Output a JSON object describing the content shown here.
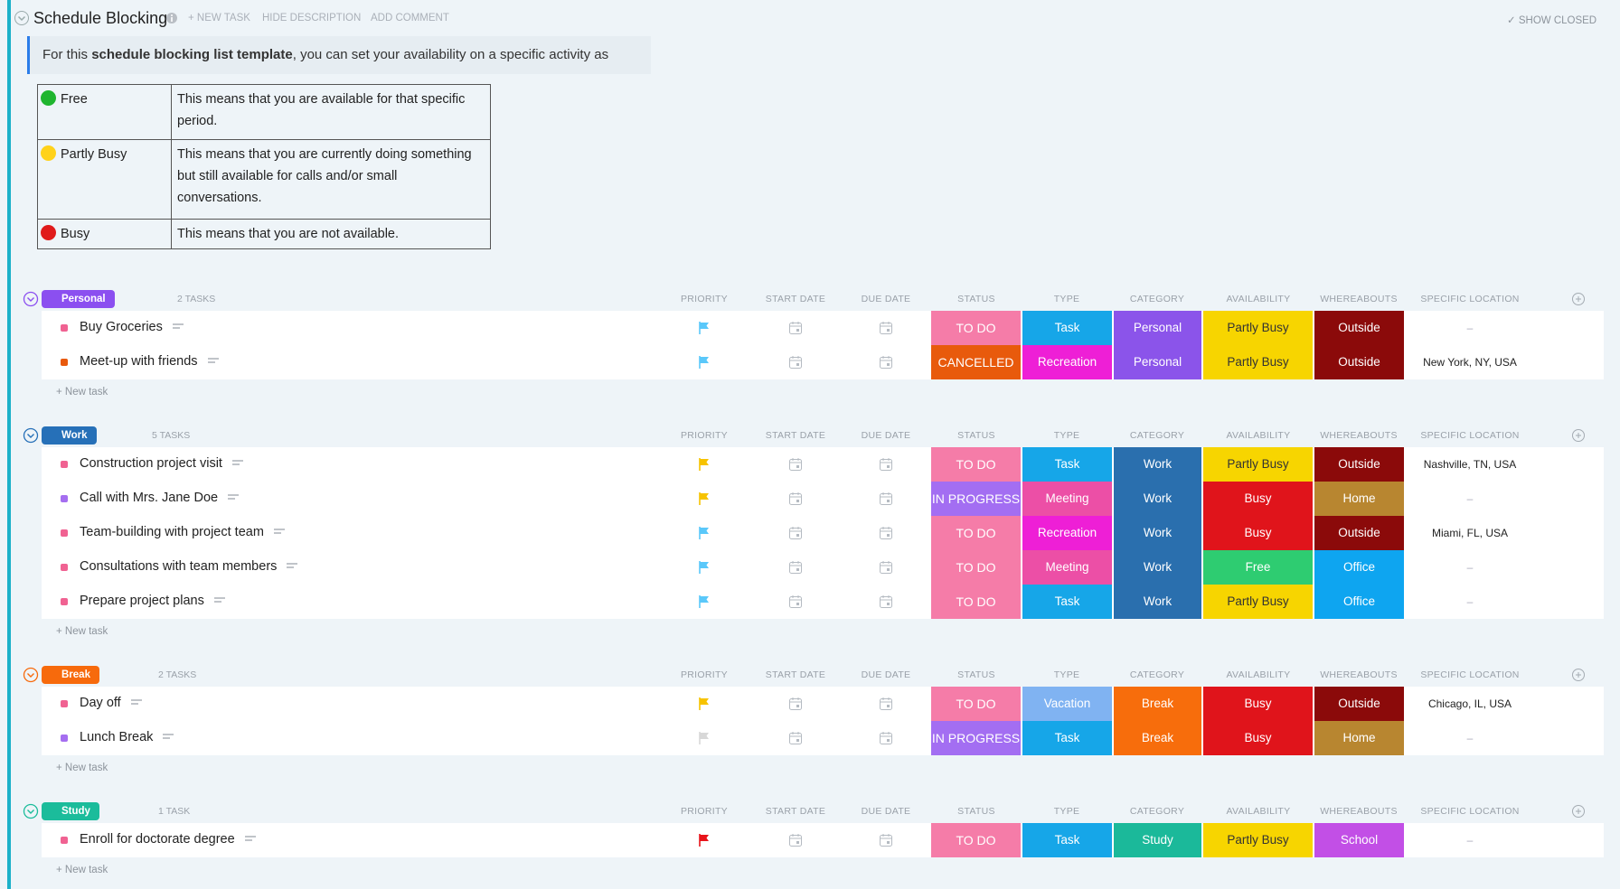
{
  "header": {
    "title": "Schedule Blocking",
    "actions": [
      "+ NEW TASK",
      "HIDE DESCRIPTION",
      "ADD COMMENT"
    ],
    "show_closed": "SHOW CLOSED"
  },
  "description": {
    "intro": [
      "For this ",
      "schedule blocking list template",
      ", you can set your availability on a specific activity as follows:"
    ],
    "legend": [
      {
        "label": "Free",
        "color": "#1fb52f",
        "text": "This means that you are available for that specific period."
      },
      {
        "label": "Partly Busy",
        "color": "#ffd21a",
        "text": "This means that you are currently doing something but still available for calls and/or small conversations."
      },
      {
        "label": "Busy",
        "color": "#e01b1b",
        "text": "This means that you are not available."
      }
    ]
  },
  "columns": [
    "PRIORITY",
    "START DATE",
    "DUE DATE",
    "STATUS",
    "TYPE",
    "CATEGORY",
    "AVAILABILITY",
    "WHEREABOUTS",
    "SPECIFIC LOCATION"
  ],
  "new_task": "+ New task",
  "groups": [
    {
      "name": "Personal",
      "color": "#8b4ff0",
      "count": "2 TASKS",
      "tasks": [
        {
          "name": "Buy Groceries",
          "bullet": "#f06292",
          "flag": "#5ac8fa",
          "status": {
            "label": "TO DO",
            "color": "#f57ca8"
          },
          "type": {
            "label": "Task",
            "color": "#16a6e8"
          },
          "category": {
            "label": "Personal",
            "color": "#8b54ea"
          },
          "availability": {
            "label": "Partly Busy",
            "color": "#f7d500"
          },
          "whereabouts": {
            "label": "Outside",
            "color": "#8b0a0a"
          },
          "location": "–"
        },
        {
          "name": "Meet-up with friends",
          "bullet": "#e8590c",
          "flag": "#5ac8fa",
          "status": {
            "label": "CANCELLED",
            "color": "#e85a0c"
          },
          "type": {
            "label": "Recreation",
            "color": "#ee1fd6"
          },
          "category": {
            "label": "Personal",
            "color": "#8b54ea"
          },
          "availability": {
            "label": "Partly Busy",
            "color": "#f7d500"
          },
          "whereabouts": {
            "label": "Outside",
            "color": "#8b0a0a"
          },
          "location": "New York, NY, USA"
        }
      ]
    },
    {
      "name": "Work",
      "color": "#2670b8",
      "count": "5 TASKS",
      "tasks": [
        {
          "name": "Construction project visit",
          "bullet": "#f06292",
          "flag": "#f7c300",
          "status": {
            "label": "TO DO",
            "color": "#f57ca8"
          },
          "type": {
            "label": "Task",
            "color": "#16a6e8"
          },
          "category": {
            "label": "Work",
            "color": "#2a6fae"
          },
          "availability": {
            "label": "Partly Busy",
            "color": "#f7d500"
          },
          "whereabouts": {
            "label": "Outside",
            "color": "#8b0a0a"
          },
          "location": "Nashville, TN, USA"
        },
        {
          "name": "Call with Mrs. Jane Doe",
          "bullet": "#a56ef0",
          "flag": "#f7c300",
          "status": {
            "label": "IN PROGRESS",
            "color": "#a36ef2"
          },
          "type": {
            "label": "Meeting",
            "color": "#ec4fa6"
          },
          "category": {
            "label": "Work",
            "color": "#2a6fae"
          },
          "availability": {
            "label": "Busy",
            "color": "#e0141b"
          },
          "whereabouts": {
            "label": "Home",
            "color": "#b88630"
          },
          "location": "–"
        },
        {
          "name": "Team-building with project team",
          "bullet": "#f06292",
          "flag": "#5ac8fa",
          "status": {
            "label": "TO DO",
            "color": "#f57ca8"
          },
          "type": {
            "label": "Recreation",
            "color": "#ee1fd6"
          },
          "category": {
            "label": "Work",
            "color": "#2a6fae"
          },
          "availability": {
            "label": "Busy",
            "color": "#e0141b"
          },
          "whereabouts": {
            "label": "Outside",
            "color": "#8b0a0a"
          },
          "location": "Miami, FL, USA"
        },
        {
          "name": "Consultations with team members",
          "bullet": "#f06292",
          "flag": "#5ac8fa",
          "status": {
            "label": "TO DO",
            "color": "#f57ca8"
          },
          "type": {
            "label": "Meeting",
            "color": "#ec4fa6"
          },
          "category": {
            "label": "Work",
            "color": "#2a6fae"
          },
          "availability": {
            "label": "Free",
            "color": "#2ecc71"
          },
          "whereabouts": {
            "label": "Office",
            "color": "#0ea5f0"
          },
          "location": "–"
        },
        {
          "name": "Prepare project plans",
          "bullet": "#f06292",
          "flag": "#5ac8fa",
          "status": {
            "label": "TO DO",
            "color": "#f57ca8"
          },
          "type": {
            "label": "Task",
            "color": "#16a6e8"
          },
          "category": {
            "label": "Work",
            "color": "#2a6fae"
          },
          "availability": {
            "label": "Partly Busy",
            "color": "#f7d500"
          },
          "whereabouts": {
            "label": "Office",
            "color": "#0ea5f0"
          },
          "location": "–"
        }
      ]
    },
    {
      "name": "Break",
      "color": "#f76a0c",
      "count": "2 TASKS",
      "tasks": [
        {
          "name": "Day off",
          "bullet": "#f06292",
          "flag": "#f7c300",
          "status": {
            "label": "TO DO",
            "color": "#f57ca8"
          },
          "type": {
            "label": "Vacation",
            "color": "#80b3f2"
          },
          "category": {
            "label": "Break",
            "color": "#f76d0c"
          },
          "availability": {
            "label": "Busy",
            "color": "#e0141b"
          },
          "whereabouts": {
            "label": "Outside",
            "color": "#8b0a0a"
          },
          "location": "Chicago, IL, USA"
        },
        {
          "name": "Lunch Break",
          "bullet": "#a56ef0",
          "flag": "#d8d8d8",
          "status": {
            "label": "IN PROGRESS",
            "color": "#a36ef2"
          },
          "type": {
            "label": "Task",
            "color": "#16a6e8"
          },
          "category": {
            "label": "Break",
            "color": "#f76d0c"
          },
          "availability": {
            "label": "Busy",
            "color": "#e0141b"
          },
          "whereabouts": {
            "label": "Home",
            "color": "#b88630"
          },
          "location": "–"
        }
      ]
    },
    {
      "name": "Study",
      "color": "#1bbc9b",
      "count": "1 TASK",
      "tasks": [
        {
          "name": "Enroll for doctorate degree",
          "bullet": "#f06292",
          "flag": "#e8141b",
          "status": {
            "label": "TO DO",
            "color": "#f57ca8"
          },
          "type": {
            "label": "Task",
            "color": "#16a6e8"
          },
          "category": {
            "label": "Study",
            "color": "#1bb99a"
          },
          "availability": {
            "label": "Partly Busy",
            "color": "#f7d500"
          },
          "whereabouts": {
            "label": "School",
            "color": "#c24fe6"
          },
          "location": "–"
        }
      ]
    }
  ]
}
